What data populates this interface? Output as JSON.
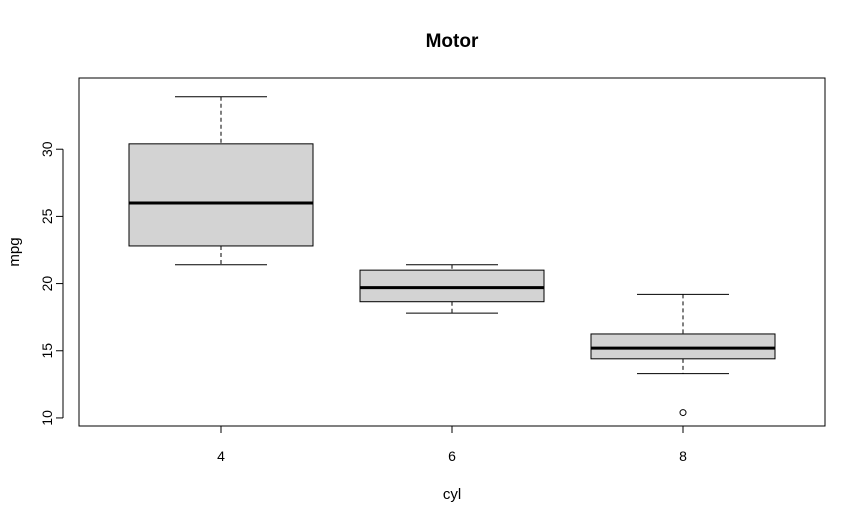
{
  "chart_data": {
    "type": "boxplot",
    "title": "Motor",
    "xlabel": "cyl",
    "ylabel": "mpg",
    "categories": [
      "4",
      "6",
      "8"
    ],
    "y_ticks": [
      10,
      15,
      20,
      25,
      30
    ],
    "ylim": [
      9.4,
      35.3
    ],
    "grid": false,
    "box_fill": "#d3d3d3",
    "boxes": [
      {
        "category": "4",
        "lower_whisker": 21.4,
        "q1": 22.8,
        "median": 26.0,
        "q3": 30.4,
        "upper_whisker": 33.9,
        "outliers": []
      },
      {
        "category": "6",
        "lower_whisker": 17.8,
        "q1": 18.65,
        "median": 19.7,
        "q3": 21.0,
        "upper_whisker": 21.4,
        "outliers": []
      },
      {
        "category": "8",
        "lower_whisker": 13.3,
        "q1": 14.4,
        "median": 15.2,
        "q3": 16.25,
        "upper_whisker": 19.2,
        "outliers": [
          10.4
        ]
      }
    ]
  }
}
